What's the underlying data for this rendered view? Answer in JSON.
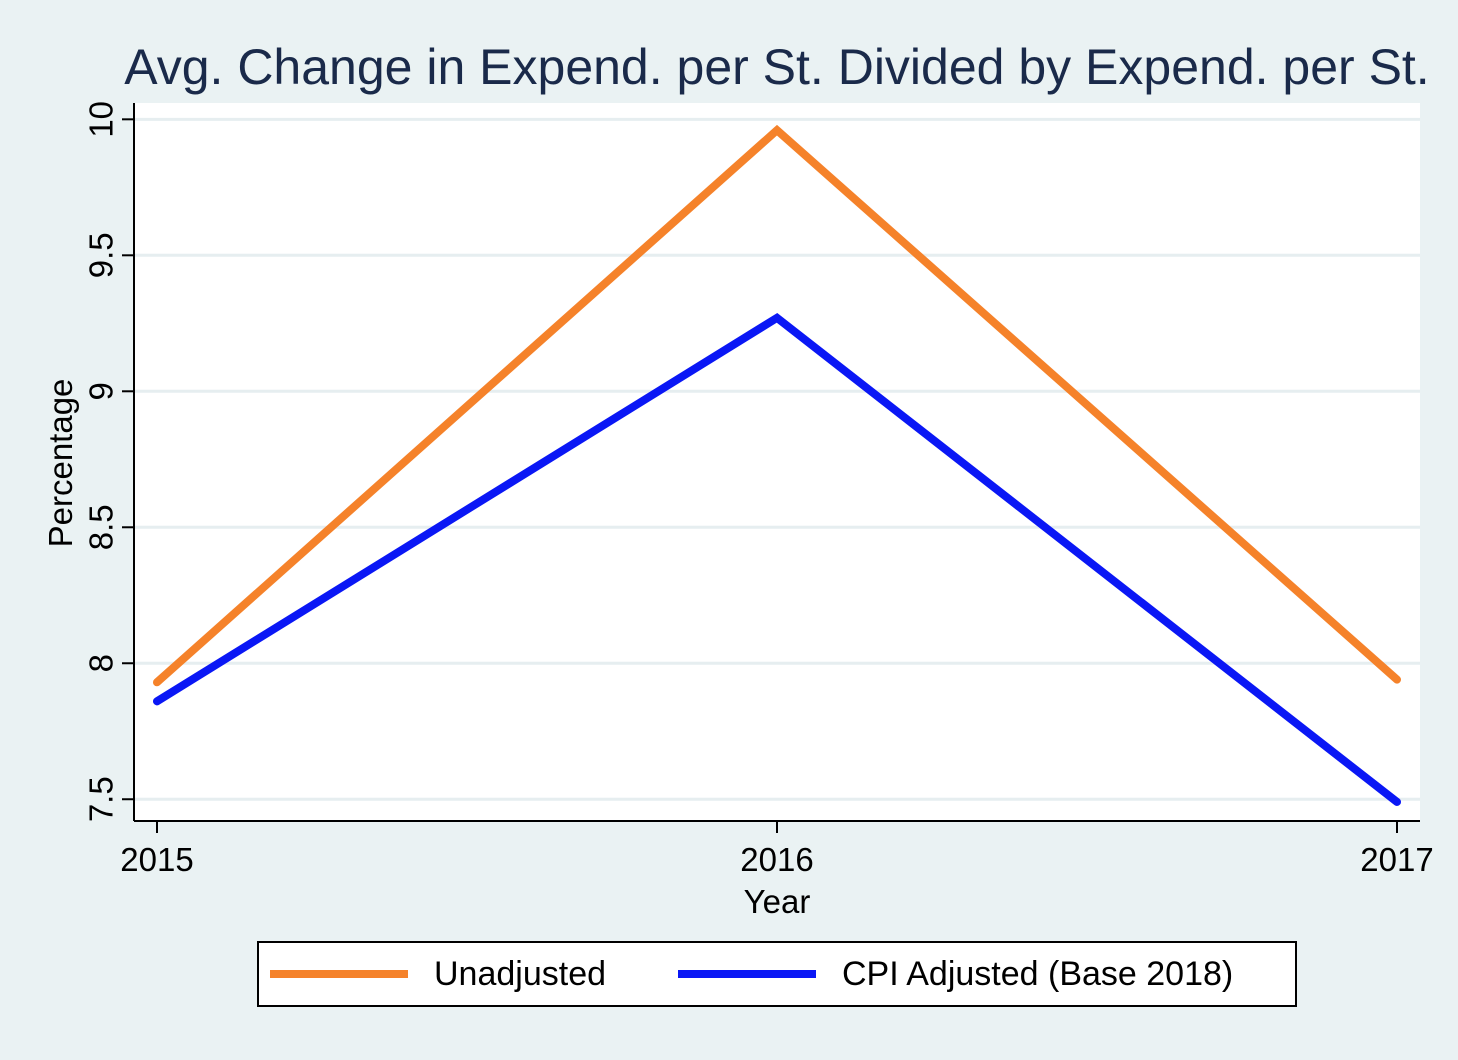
{
  "colors": {
    "background": "#eaf2f3",
    "plot_background": "#ffffff",
    "gridline": "#e6eef0",
    "unadjusted": "#f5822a",
    "cpi_adjusted": "#0a17f5",
    "title": "#1a2a4a"
  },
  "chart_data": {
    "type": "line",
    "title": "Avg. Change in Expend. per St. Divided by Expend. per St.",
    "xlabel": "Year",
    "ylabel": "Percentage",
    "x": [
      2015,
      2016,
      2017
    ],
    "x_tick_labels": [
      "2015",
      "2016",
      "2017"
    ],
    "y_ticks": [
      7.5,
      8,
      8.5,
      9,
      9.5,
      10
    ],
    "y_tick_labels": [
      "7.5",
      "8",
      "8.5",
      "9",
      "9.5",
      "10"
    ],
    "ylim": [
      7.42,
      10.06
    ],
    "grid": true,
    "legend_position": "bottom",
    "series": [
      {
        "name": "Unadjusted",
        "color": "#f5822a",
        "values": [
          7.93,
          9.96,
          7.94
        ]
      },
      {
        "name": "CPI Adjusted (Base 2018)",
        "color": "#0a17f5",
        "values": [
          7.86,
          9.27,
          7.49
        ]
      }
    ]
  }
}
